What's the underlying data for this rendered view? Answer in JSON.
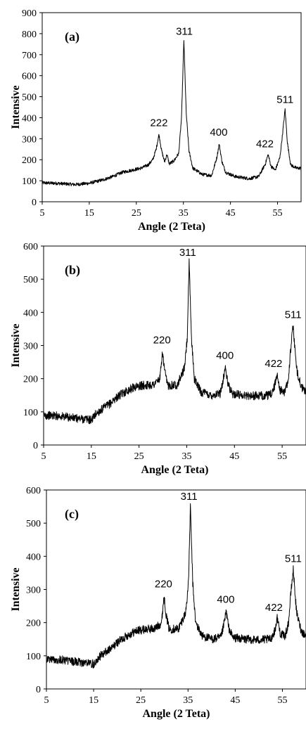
{
  "chart_data": [
    {
      "type": "line",
      "panel_label": "(a)",
      "xlabel": "Angle (2 Teta)",
      "ylabel": "Intensive",
      "xlim": [
        5,
        60
      ],
      "ylim": [
        0,
        900
      ],
      "x_ticks": [
        5,
        15,
        25,
        35,
        45,
        55
      ],
      "y_ticks": [
        0,
        100,
        200,
        300,
        400,
        500,
        600,
        700,
        800,
        900
      ],
      "grid": false,
      "line_color": "#000000",
      "noise_amplitude": 8,
      "series": [
        {
          "x": [
            5,
            8,
            12,
            15,
            18,
            20,
            22,
            24,
            26,
            27.5,
            28.5,
            29.2,
            29.8,
            30.4,
            31,
            31.5,
            32,
            33,
            34,
            34.6,
            35.1,
            35.6,
            36.2,
            37,
            39,
            41,
            42.1,
            42.6,
            43.2,
            44,
            46,
            49,
            51,
            52.4,
            53,
            53.6,
            54.5,
            55.5,
            56.1,
            56.6,
            57.1,
            57.8,
            59,
            60
          ],
          "y": [
            90,
            88,
            82,
            88,
            105,
            120,
            140,
            150,
            160,
            175,
            200,
            250,
            320,
            240,
            190,
            225,
            180,
            195,
            230,
            400,
            770,
            420,
            240,
            160,
            130,
            125,
            210,
            275,
            190,
            140,
            120,
            110,
            120,
            180,
            225,
            170,
            150,
            210,
            330,
            440,
            280,
            175,
            160,
            160
          ]
        }
      ],
      "peak_labels": [
        {
          "text": "222",
          "x": 29.8,
          "y": 360
        },
        {
          "text": "311",
          "x": 35.2,
          "y": 795
        },
        {
          "text": "400",
          "x": 42.5,
          "y": 315
        },
        {
          "text": "422",
          "x": 52.3,
          "y": 260
        },
        {
          "text": "511",
          "x": 56.6,
          "y": 470
        }
      ]
    },
    {
      "type": "line",
      "panel_label": "(b)",
      "xlabel": "Angle (2 Teta)",
      "ylabel": "Intensive",
      "xlim": [
        5,
        60
      ],
      "ylim": [
        0,
        600
      ],
      "x_ticks": [
        5,
        15,
        25,
        35,
        45,
        55
      ],
      "y_ticks": [
        0,
        100,
        200,
        300,
        400,
        500,
        600
      ],
      "grid": false,
      "line_color": "#000000",
      "noise_amplitude": 13,
      "series": [
        {
          "x": [
            5,
            8,
            12,
            14,
            15,
            16,
            17,
            19,
            20,
            22,
            24,
            26,
            28,
            29.4,
            29.9,
            30.4,
            31,
            33,
            34.5,
            35.1,
            35.5,
            36,
            36.6,
            38,
            40,
            42,
            42.6,
            43.1,
            43.6,
            44.5,
            47,
            50,
            52.5,
            53.4,
            53.9,
            54.6,
            55.6,
            56.3,
            56.8,
            57.3,
            58,
            59,
            60
          ],
          "y": [
            90,
            88,
            80,
            78,
            75,
            95,
            105,
            125,
            140,
            160,
            175,
            180,
            182,
            200,
            280,
            220,
            180,
            182,
            230,
            320,
            550,
            320,
            200,
            160,
            150,
            155,
            195,
            235,
            185,
            155,
            150,
            148,
            150,
            175,
            215,
            165,
            160,
            200,
            290,
            360,
            230,
            175,
            160
          ]
        }
      ],
      "peak_labels": [
        {
          "text": "220",
          "x": 29.8,
          "y": 306
        },
        {
          "text": "311",
          "x": 35.2,
          "y": 570
        },
        {
          "text": "400",
          "x": 43.0,
          "y": 260
        },
        {
          "text": "422",
          "x": 53.2,
          "y": 235
        },
        {
          "text": "511",
          "x": 57.3,
          "y": 383
        }
      ]
    },
    {
      "type": "line",
      "panel_label": "(c)",
      "xlabel": "Angle (2 Teta)",
      "ylabel": "Intensive",
      "xlim": [
        5,
        60
      ],
      "ylim": [
        0,
        600
      ],
      "x_ticks": [
        5,
        15,
        25,
        35,
        45,
        55
      ],
      "y_ticks": [
        0,
        100,
        200,
        300,
        400,
        500,
        600
      ],
      "grid": false,
      "line_color": "#000000",
      "noise_amplitude": 13,
      "series": [
        {
          "x": [
            5,
            8,
            12,
            14,
            15,
            16,
            17,
            19,
            20,
            22,
            24,
            26,
            28,
            29.4,
            29.9,
            30.4,
            31,
            33,
            34.5,
            35.1,
            35.5,
            36,
            36.6,
            38,
            40,
            42,
            42.6,
            43.1,
            43.6,
            44.5,
            47,
            50,
            52.5,
            53.4,
            53.9,
            54.6,
            55.6,
            56.3,
            56.8,
            57.3,
            58,
            59,
            60
          ],
          "y": [
            90,
            88,
            80,
            78,
            75,
            95,
            105,
            125,
            140,
            160,
            175,
            180,
            182,
            200,
            280,
            220,
            180,
            182,
            230,
            320,
            550,
            320,
            200,
            160,
            150,
            155,
            195,
            235,
            185,
            155,
            150,
            148,
            150,
            175,
            215,
            165,
            160,
            200,
            290,
            360,
            230,
            175,
            160
          ]
        }
      ],
      "peak_labels": [
        {
          "text": "220",
          "x": 29.8,
          "y": 306
        },
        {
          "text": "311",
          "x": 35.2,
          "y": 570
        },
        {
          "text": "400",
          "x": 43.0,
          "y": 260
        },
        {
          "text": "422",
          "x": 53.2,
          "y": 235
        },
        {
          "text": "511",
          "x": 57.3,
          "y": 383
        }
      ]
    }
  ]
}
